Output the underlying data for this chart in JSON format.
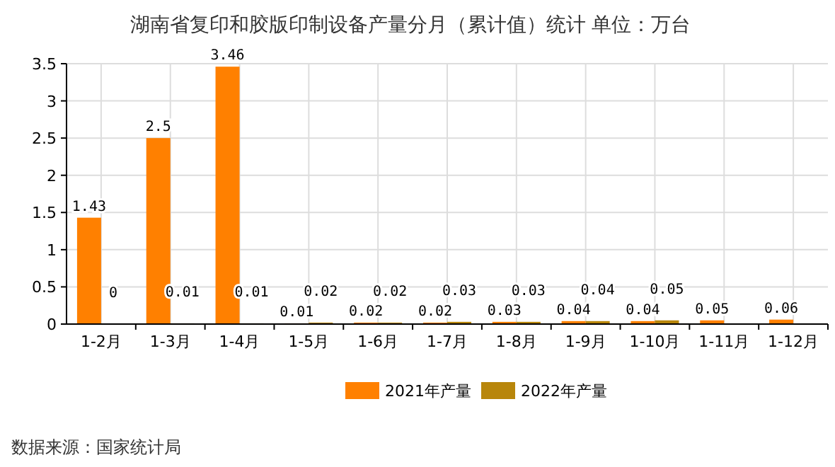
{
  "chart_data": {
    "type": "bar",
    "title": "湖南省复印和胶版印制设备产量分月（累计值）统计  单位：万台",
    "categories": [
      "1-2月",
      "1-3月",
      "1-4月",
      "1-5月",
      "1-6月",
      "1-7月",
      "1-8月",
      "1-9月",
      "1-10月",
      "1-11月",
      "1-12月"
    ],
    "series": [
      {
        "name": "2021年产量",
        "color": "#ff8000",
        "values": [
          1.43,
          2.5,
          3.46,
          0.01,
          0.02,
          0.02,
          0.03,
          0.04,
          0.04,
          0.05,
          0.06
        ]
      },
      {
        "name": "2022年产量",
        "color": "#b8860b",
        "values": [
          0,
          0.01,
          0.01,
          0.02,
          0.02,
          0.03,
          0.03,
          0.04,
          0.05,
          null,
          null
        ]
      }
    ],
    "ylim": [
      0,
      3.5
    ],
    "yticks": [
      0,
      0.5,
      1,
      1.5,
      2,
      2.5,
      3,
      3.5
    ],
    "grid": true,
    "legend": "bottom",
    "data_labels": true,
    "annotations": [
      "数据来源：国家统计局"
    ]
  }
}
